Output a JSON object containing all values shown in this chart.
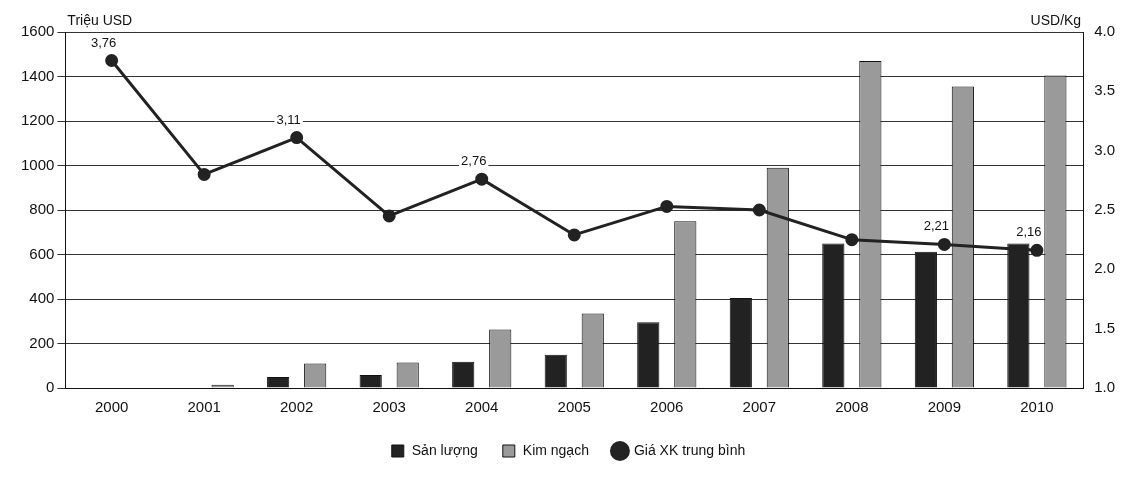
{
  "chart_data": {
    "type": "bar",
    "ylabel": "Triệu USD",
    "y2label": "USD/Kg",
    "categories": [
      "2000",
      "2001",
      "2002",
      "2003",
      "2004",
      "2005",
      "2006",
      "2007",
      "2008",
      "2009",
      "2010"
    ],
    "series": [
      {
        "name": "Sản lượng",
        "color": "#222222",
        "values": [
          0,
          null,
          50,
          58,
          118,
          150,
          295,
          405,
          650,
          612,
          650
        ]
      },
      {
        "name": "Kim ngạch",
        "color": "#9a9a9a",
        "values": [
          0,
          15,
          110,
          115,
          263,
          335,
          750,
          990,
          1470,
          1355,
          1405
        ]
      },
      {
        "name": "Giá XK trung bình",
        "type": "line",
        "axis": "y2",
        "color": "#222222",
        "marker": "circle",
        "values": [
          3.76,
          2.8,
          3.11,
          2.45,
          2.76,
          2.29,
          2.53,
          2.5,
          2.25,
          2.21,
          2.16
        ],
        "value_labels": [
          "3,76",
          null,
          "3,11",
          null,
          "2,76",
          null,
          null,
          null,
          null,
          "2,21",
          "2,16"
        ]
      }
    ],
    "ylim": [
      0,
      1600
    ],
    "yticks": [
      0,
      200,
      400,
      600,
      800,
      1000,
      1200,
      1400,
      1600
    ],
    "y2lim": [
      1,
      4
    ],
    "y2ticks": [
      {
        "value": 1,
        "label": "1.0"
      },
      {
        "value": 1.5,
        "label": "1.5"
      },
      {
        "value": 2,
        "label": "2.0"
      },
      {
        "value": 2.5,
        "label": "2.5"
      },
      {
        "value": 3,
        "label": "3.0"
      },
      {
        "value": 3.5,
        "label": "3.5"
      },
      {
        "value": 4,
        "label": "4.0"
      }
    ],
    "grid": "y",
    "legend": "bottom"
  }
}
